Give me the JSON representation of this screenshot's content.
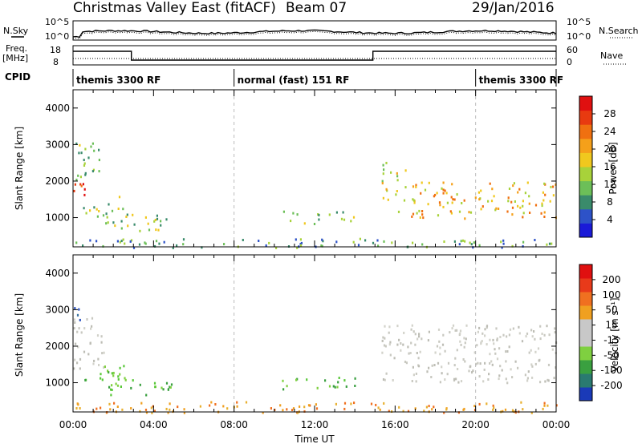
{
  "header": {
    "title": "Christmas Valley East (fitACF)",
    "beam": "Beam 07",
    "date": "29/Jan/2016"
  },
  "strip": {
    "nsky_label": "N.Sky",
    "nsearch_label": "N.Search",
    "noise_ticks": [
      "10^5",
      "10^0"
    ],
    "freq_label": "Freq.",
    "freq_unit": "[MHz]",
    "freq_ticks": [
      "18",
      "8"
    ],
    "nave_label": "Nave",
    "nave_ticks": [
      "60",
      "0"
    ],
    "cpid_label": "CPID",
    "cpid_segments": [
      {
        "label": "themis 3300 RF",
        "start": 0,
        "end": 8
      },
      {
        "label": "normal (fast) 151 RF",
        "start": 8,
        "end": 20
      },
      {
        "label": "themis 3300 RF",
        "start": 20,
        "end": 24
      }
    ],
    "freq_steps": [
      {
        "start": 0,
        "end": 2.9,
        "level": "high"
      },
      {
        "start": 2.9,
        "end": 14.9,
        "level": "low"
      },
      {
        "start": 14.9,
        "end": 24,
        "level": "high"
      }
    ]
  },
  "chart_data": [
    {
      "type": "heatmap",
      "panel": "power",
      "ylabel": "Slant Range [km]",
      "xlabel": "",
      "ylim": [
        200,
        4500
      ],
      "xlim": [
        0,
        24
      ],
      "yticks": [
        "1000",
        "2000",
        "3000",
        "4000"
      ],
      "colorbar": {
        "label": "Power [dB]",
        "ticks": [
          "4",
          "8",
          "12",
          "16",
          "20",
          "24",
          "28"
        ],
        "colors": [
          "#1a1ad8",
          "#2d52c8",
          "#3a8b6b",
          "#6cbf58",
          "#a8d23a",
          "#f0c81e",
          "#f5a01a",
          "#f07010",
          "#e83a10",
          "#e01010"
        ]
      },
      "bands": [
        {
          "t0": 0.0,
          "t1": 0.6,
          "r0": 1400,
          "r1": 2000,
          "level": 8
        },
        {
          "t0": 0.1,
          "t1": 1.3,
          "r0": 2000,
          "r1": 3100,
          "level": 3
        },
        {
          "t0": 0.5,
          "t1": 2.6,
          "r0": 1000,
          "r1": 1600,
          "level": 3
        },
        {
          "t0": 1.6,
          "t1": 5.0,
          "r0": 650,
          "r1": 1150,
          "level": 3
        },
        {
          "t0": 0.0,
          "t1": 24.0,
          "r0": 200,
          "r1": 450,
          "level": 2
        },
        {
          "t0": 10.3,
          "t1": 14.2,
          "r0": 850,
          "r1": 1200,
          "level": 3
        },
        {
          "t0": 15.3,
          "t1": 16.5,
          "r0": 1500,
          "r1": 2600,
          "level": 4
        },
        {
          "t0": 16.0,
          "t1": 24.0,
          "r0": 1000,
          "r1": 2000,
          "level": 5
        }
      ]
    },
    {
      "type": "heatmap",
      "panel": "velocity",
      "ylabel": "Slant Range [km]",
      "xlabel": "Time UT",
      "ylim": [
        200,
        4500
      ],
      "xlim": [
        0,
        24
      ],
      "yticks": [
        "1000",
        "2000",
        "3000",
        "4000"
      ],
      "xticks": [
        "00:00",
        "04:00",
        "08:00",
        "12:00",
        "16:00",
        "20:00",
        "00:00"
      ],
      "colorbar": {
        "label": "Velocity [m s⁻¹]",
        "ticks": [
          "200",
          "100",
          "50",
          "15",
          "-15",
          "-50",
          "-100",
          "-200"
        ],
        "colors": [
          "#1a3ab8",
          "#2a7a70",
          "#3aa040",
          "#7fd040",
          "#c8c8c8",
          "#c8c8c8",
          "#f0a020",
          "#f07020",
          "#e83a1a",
          "#e01010"
        ]
      },
      "bands": [
        {
          "t0": 0.0,
          "t1": 0.5,
          "r0": 2700,
          "r1": 3200,
          "color": "blue"
        },
        {
          "t0": 0.0,
          "t1": 1.5,
          "r0": 1400,
          "r1": 2800,
          "color": "grey"
        },
        {
          "t0": 0.5,
          "t1": 2.6,
          "r0": 1050,
          "r1": 1500,
          "color": "green"
        },
        {
          "t0": 1.6,
          "t1": 5.0,
          "r0": 650,
          "r1": 1150,
          "color": "green"
        },
        {
          "t0": 0.0,
          "t1": 24.0,
          "r0": 200,
          "r1": 500,
          "color": "orange"
        },
        {
          "t0": 10.3,
          "t1": 14.2,
          "r0": 850,
          "r1": 1200,
          "color": "green"
        },
        {
          "t0": 15.3,
          "t1": 24.0,
          "r0": 1000,
          "r1": 2600,
          "color": "grey"
        }
      ]
    }
  ]
}
